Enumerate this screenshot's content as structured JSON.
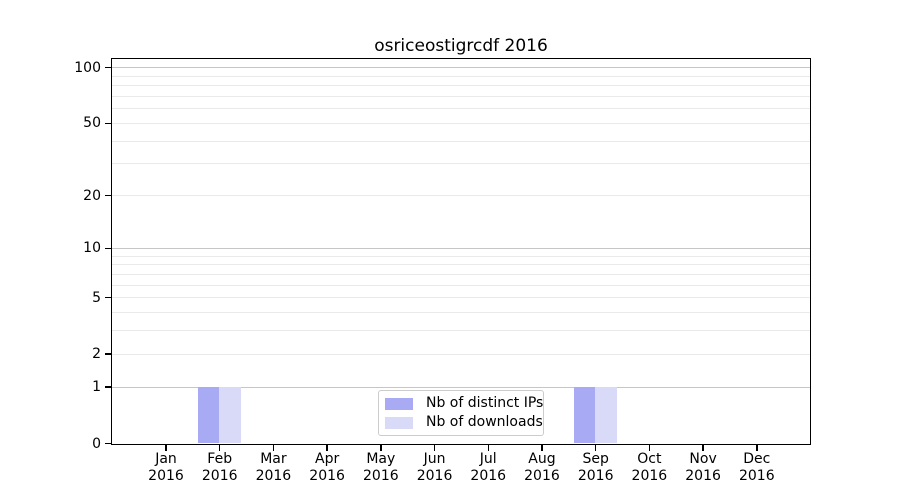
{
  "figure": {
    "title": "osriceostigrcdf 2016",
    "background": "#ffffff"
  },
  "chart_data": {
    "type": "bar",
    "title": "osriceostigrcdf 2016",
    "xlabel": "",
    "ylabel": "",
    "categories": [
      {
        "month": "Jan",
        "year": "2016"
      },
      {
        "month": "Feb",
        "year": "2016"
      },
      {
        "month": "Mar",
        "year": "2016"
      },
      {
        "month": "Apr",
        "year": "2016"
      },
      {
        "month": "May",
        "year": "2016"
      },
      {
        "month": "Jun",
        "year": "2016"
      },
      {
        "month": "Jul",
        "year": "2016"
      },
      {
        "month": "Aug",
        "year": "2016"
      },
      {
        "month": "Sep",
        "year": "2016"
      },
      {
        "month": "Oct",
        "year": "2016"
      },
      {
        "month": "Nov",
        "year": "2016"
      },
      {
        "month": "Dec",
        "year": "2016"
      }
    ],
    "series": [
      {
        "name": "Nb of distinct IPs",
        "color": "#a8aaf3",
        "values": [
          0,
          1,
          0,
          0,
          0,
          0,
          0,
          0,
          1,
          0,
          0,
          0
        ]
      },
      {
        "name": "Nb of downloads",
        "color": "#d9d9f8",
        "values": [
          0,
          1,
          0,
          0,
          0,
          0,
          0,
          0,
          1,
          0,
          0,
          0
        ]
      }
    ],
    "y_axis": {
      "scale": "log1p",
      "min": 0,
      "max": 100,
      "tick_labels": [
        0,
        1,
        2,
        5,
        10,
        20,
        50,
        100
      ],
      "major_gridlines": [
        1,
        10,
        100
      ],
      "minor_gridlines": [
        2,
        3,
        4,
        5,
        6,
        7,
        8,
        9,
        20,
        30,
        40,
        50,
        60,
        70,
        80,
        90
      ],
      "grid": true
    },
    "legend": {
      "position": "lower center",
      "items": [
        "Nb of distinct IPs",
        "Nb of downloads"
      ]
    }
  },
  "colors": {
    "major_grid": "#c6c6c6",
    "minor_grid": "#eaeaea",
    "spine": "#000000",
    "legend_border": "#cccccc",
    "background": "#ffffff"
  }
}
